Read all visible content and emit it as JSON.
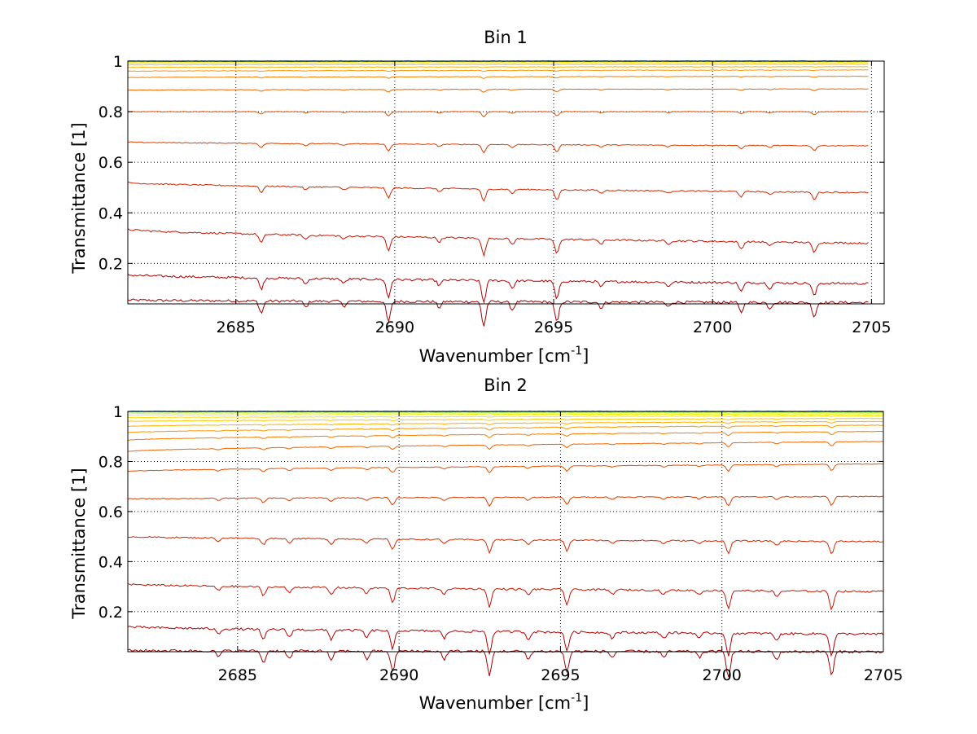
{
  "figure": {
    "background": "#ffffff"
  },
  "chart_data": [
    {
      "type": "line",
      "title": "Bin 1",
      "xlabel": "Wavenumber [cm",
      "xlabel_sup": "-1",
      "xlabel_end": "]",
      "ylabel": "Transmittance [1]",
      "xlim": [
        2681.6,
        2705.4
      ],
      "ylim": [
        0.04,
        1.0
      ],
      "x_data_end": 2704.9,
      "xticks": [
        2685,
        2690,
        2695,
        2700,
        2705
      ],
      "xtick_labels": [
        "2685",
        "2690",
        "2695",
        "2700",
        "2705"
      ],
      "yticks": [
        0.2,
        0.4,
        0.6,
        0.8,
        1
      ],
      "ytick_labels": [
        "0.2",
        "0.4",
        "0.6",
        "0.8",
        "1"
      ],
      "grid": true,
      "colormap": "jet",
      "series_baselines": [
        {
          "start": 0.055,
          "end": 0.045,
          "color": "#a00000"
        },
        {
          "start": 0.155,
          "end": 0.12,
          "color": "#b40000"
        },
        {
          "start": 0.335,
          "end": 0.28,
          "color": "#c81400"
        },
        {
          "start": 0.52,
          "end": 0.48,
          "color": "#d22800"
        },
        {
          "start": 0.68,
          "end": 0.665,
          "color": "#dc3c00"
        },
        {
          "start": 0.8,
          "end": 0.8,
          "color": "#e65000"
        },
        {
          "start": 0.885,
          "end": 0.89,
          "color": "#f06400"
        },
        {
          "start": 0.935,
          "end": 0.94,
          "color": "#f57d00"
        },
        {
          "start": 0.96,
          "end": 0.965,
          "color": "#fa9600"
        },
        {
          "start": 0.975,
          "end": 0.978,
          "color": "#fcb000"
        },
        {
          "start": 0.985,
          "end": 0.987,
          "color": "#ffc800"
        },
        {
          "start": 0.992,
          "end": 0.993,
          "color": "#ffe000"
        },
        {
          "start": 0.996,
          "end": 0.997,
          "color": "#f0f000"
        },
        {
          "start": 0.999,
          "end": 0.999,
          "color": "#a0f060"
        },
        {
          "start": 1.0,
          "end": 1.0,
          "color": "#40e0b0"
        },
        {
          "start": 1.0,
          "end": 1.0,
          "color": "#00a0f0"
        },
        {
          "start": 1.0,
          "end": 1.0,
          "color": "#0050ff"
        }
      ],
      "absorption_lines": [
        {
          "x": 2685.8,
          "depth": 0.03
        },
        {
          "x": 2687.2,
          "depth": 0.015
        },
        {
          "x": 2688.4,
          "depth": 0.012
        },
        {
          "x": 2689.8,
          "depth": 0.05
        },
        {
          "x": 2691.4,
          "depth": 0.015
        },
        {
          "x": 2692.8,
          "depth": 0.06
        },
        {
          "x": 2693.7,
          "depth": 0.02
        },
        {
          "x": 2695.1,
          "depth": 0.05
        },
        {
          "x": 2696.5,
          "depth": 0.015
        },
        {
          "x": 2698.6,
          "depth": 0.012
        },
        {
          "x": 2700.9,
          "depth": 0.025
        },
        {
          "x": 2701.8,
          "depth": 0.015
        },
        {
          "x": 2703.2,
          "depth": 0.035
        }
      ]
    },
    {
      "type": "line",
      "title": "Bin 2",
      "xlabel": "Wavenumber [cm",
      "xlabel_sup": "-1",
      "xlabel_end": "]",
      "ylabel": "Transmittance [1]",
      "xlim": [
        2681.6,
        2705.0
      ],
      "ylim": [
        0.04,
        1.0
      ],
      "x_data_end": 2705.0,
      "xticks": [
        2685,
        2690,
        2695,
        2700,
        2705
      ],
      "xtick_labels": [
        "2685",
        "2690",
        "2695",
        "2700",
        "2705"
      ],
      "yticks": [
        0.2,
        0.4,
        0.6,
        0.8,
        1
      ],
      "ytick_labels": [
        "0.2",
        "0.4",
        "0.6",
        "0.8",
        "1"
      ],
      "grid": true,
      "colormap": "jet",
      "series_baselines": [
        {
          "start": 0.045,
          "end": 0.04,
          "color": "#a00000"
        },
        {
          "start": 0.14,
          "end": 0.11,
          "color": "#b40000"
        },
        {
          "start": 0.31,
          "end": 0.28,
          "color": "#c81400"
        },
        {
          "start": 0.5,
          "end": 0.48,
          "color": "#d22800"
        },
        {
          "start": 0.65,
          "end": 0.66,
          "color": "#dc3c00"
        },
        {
          "start": 0.76,
          "end": 0.79,
          "color": "#e65000"
        },
        {
          "start": 0.84,
          "end": 0.88,
          "color": "#f06400"
        },
        {
          "start": 0.885,
          "end": 0.92,
          "color": "#f57d00"
        },
        {
          "start": 0.915,
          "end": 0.945,
          "color": "#fa9600"
        },
        {
          "start": 0.94,
          "end": 0.96,
          "color": "#fcb000"
        },
        {
          "start": 0.96,
          "end": 0.972,
          "color": "#ffc800"
        },
        {
          "start": 0.975,
          "end": 0.982,
          "color": "#ffe000"
        },
        {
          "start": 0.985,
          "end": 0.99,
          "color": "#f0f000"
        },
        {
          "start": 0.993,
          "end": 0.995,
          "color": "#c0f030"
        },
        {
          "start": 0.998,
          "end": 0.998,
          "color": "#60e890"
        },
        {
          "start": 1.0,
          "end": 1.0,
          "color": "#00b0e0"
        },
        {
          "start": 1.0,
          "end": 1.0,
          "color": "#0050ff"
        }
      ],
      "absorption_lines": [
        {
          "x": 2684.4,
          "depth": 0.015
        },
        {
          "x": 2685.8,
          "depth": 0.03
        },
        {
          "x": 2686.6,
          "depth": 0.02
        },
        {
          "x": 2687.9,
          "depth": 0.025
        },
        {
          "x": 2689.0,
          "depth": 0.02
        },
        {
          "x": 2689.8,
          "depth": 0.05
        },
        {
          "x": 2691.4,
          "depth": 0.02
        },
        {
          "x": 2692.8,
          "depth": 0.06
        },
        {
          "x": 2694.0,
          "depth": 0.02
        },
        {
          "x": 2695.2,
          "depth": 0.05
        },
        {
          "x": 2696.6,
          "depth": 0.015
        },
        {
          "x": 2698.2,
          "depth": 0.015
        },
        {
          "x": 2699.3,
          "depth": 0.015
        },
        {
          "x": 2700.2,
          "depth": 0.06
        },
        {
          "x": 2701.7,
          "depth": 0.02
        },
        {
          "x": 2703.4,
          "depth": 0.06
        }
      ]
    }
  ]
}
